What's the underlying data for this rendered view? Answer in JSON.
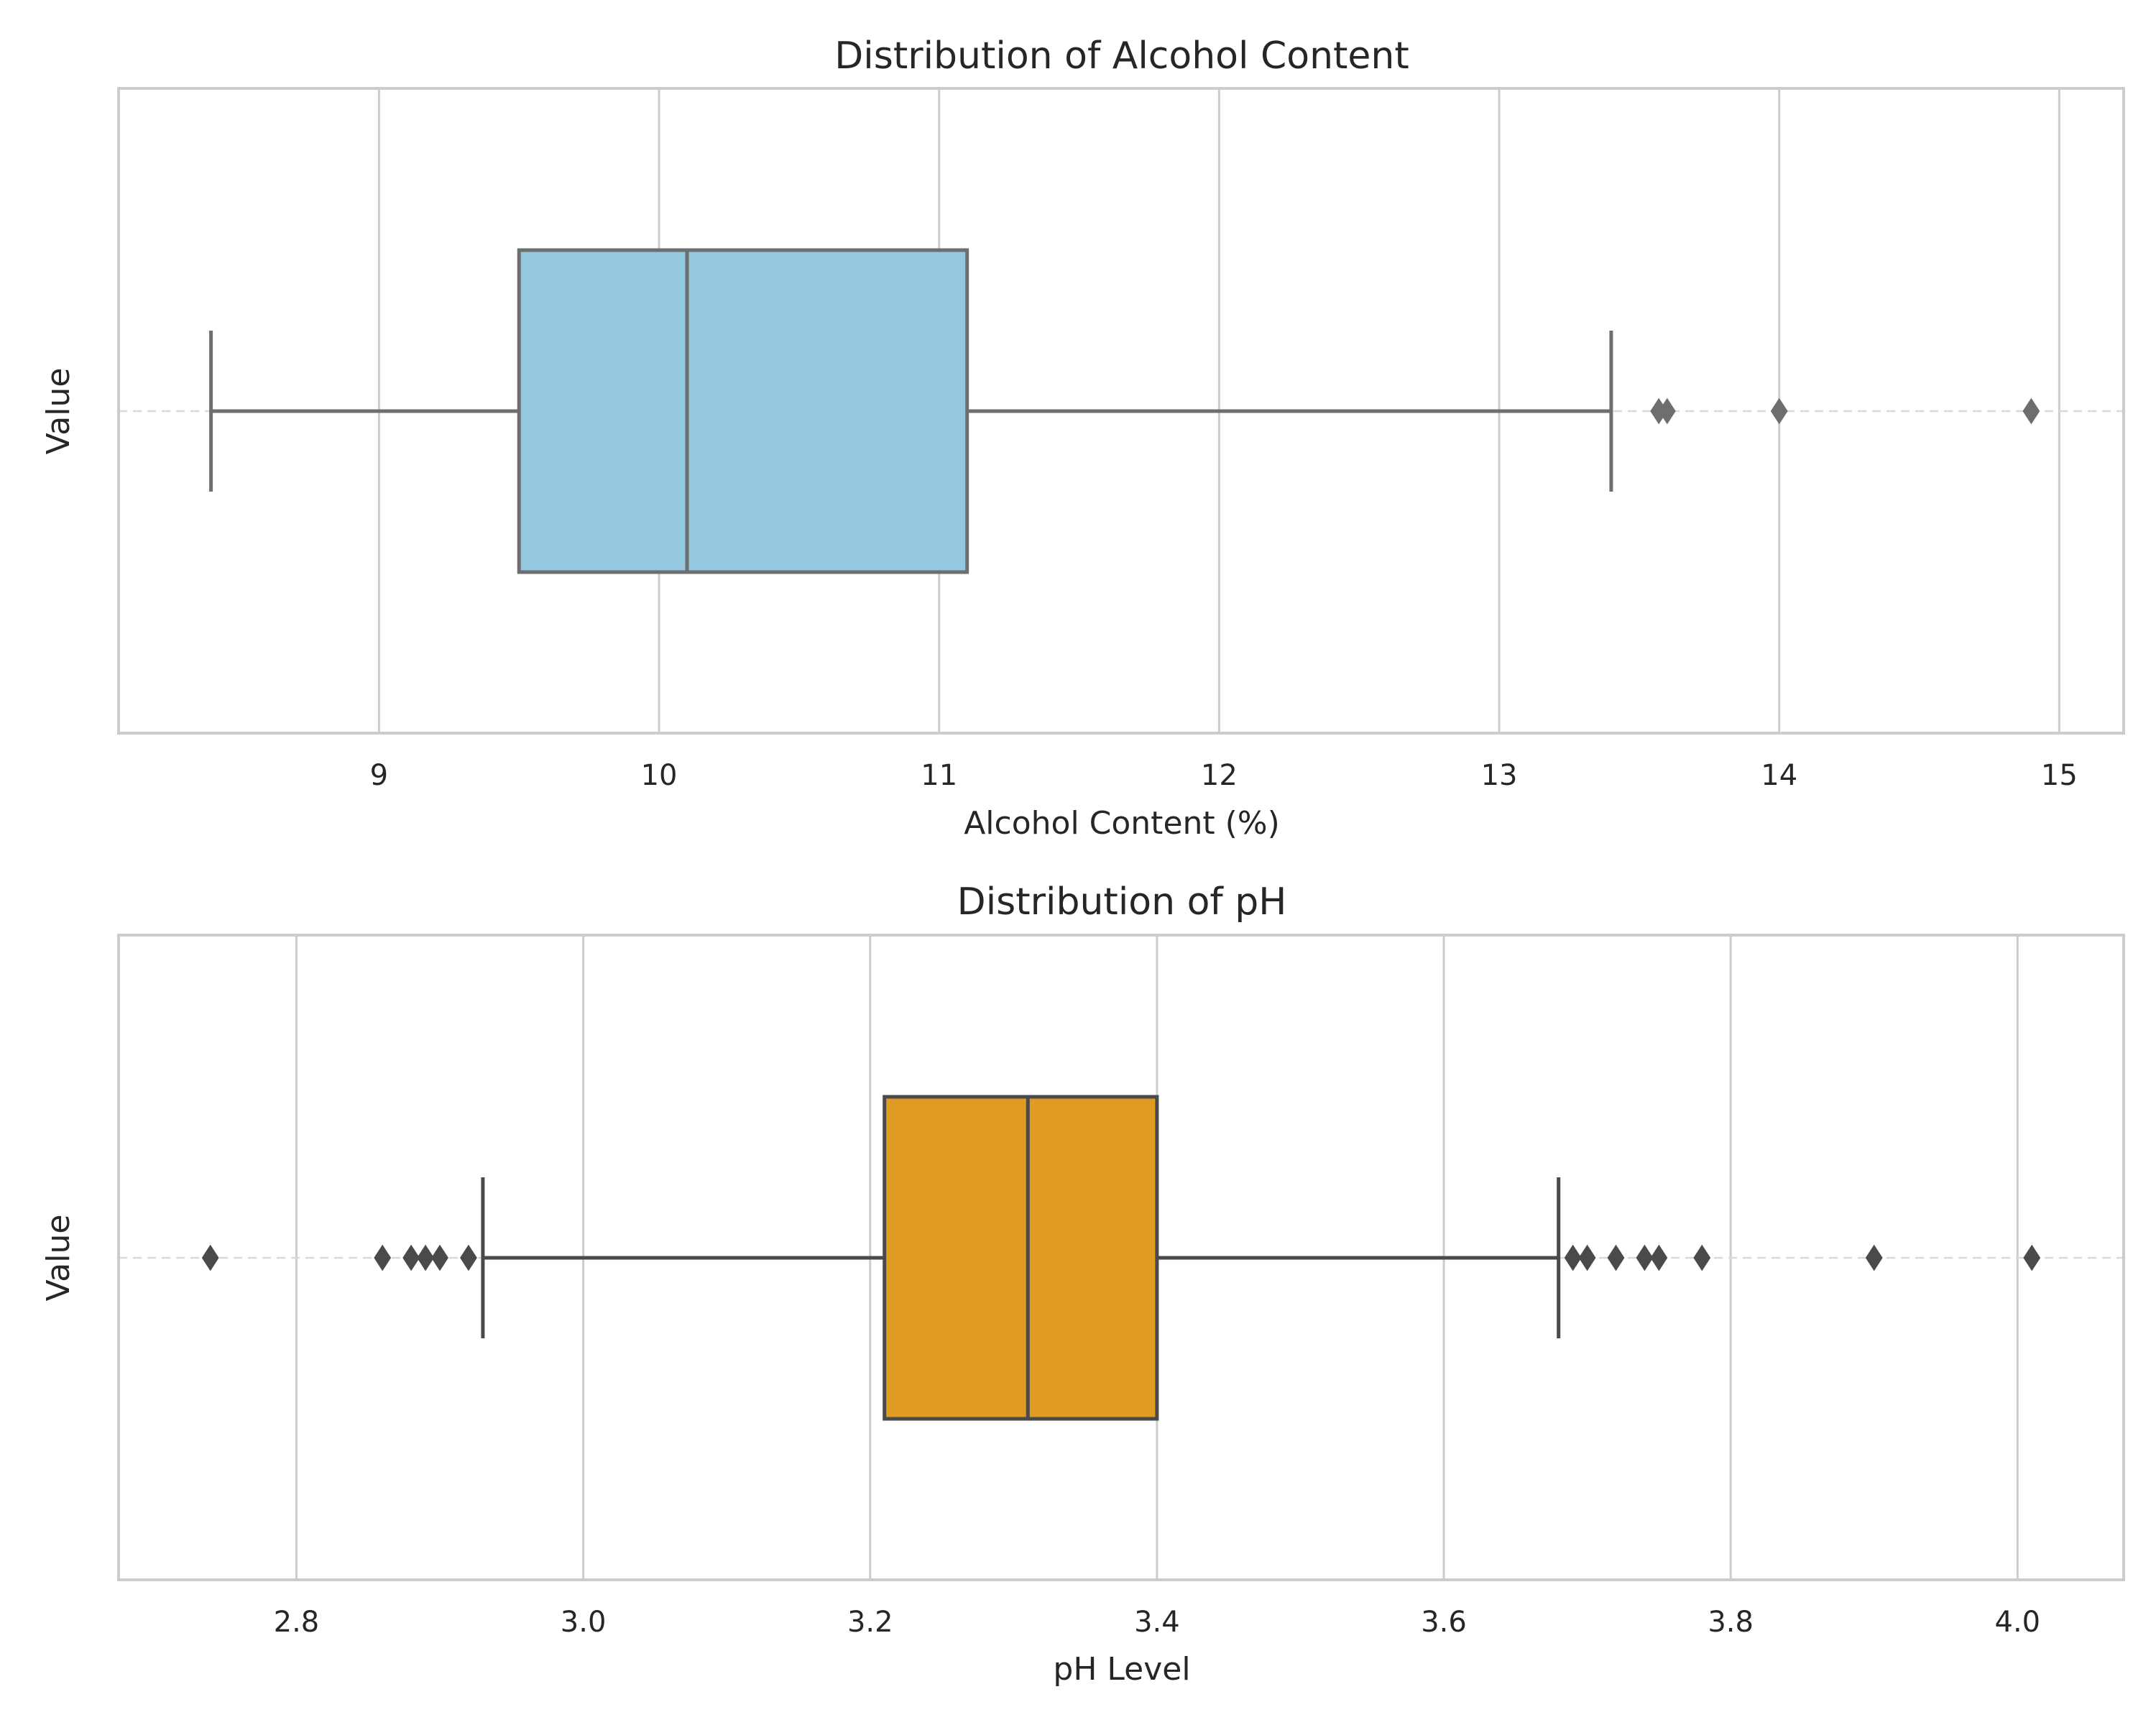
{
  "chart_data": [
    {
      "type": "box",
      "title": "Distribution of Alcohol Content",
      "xlabel": "Alcohol Content (%)",
      "ylabel": "Value",
      "xlim": [
        8.07,
        15.23
      ],
      "xticks": [
        9,
        10,
        11,
        12,
        13,
        14,
        15
      ],
      "tick_labels": [
        "9",
        "10",
        "11",
        "12",
        "13",
        "14",
        "15"
      ],
      "grid": true,
      "box": {
        "whisker_low": 8.4,
        "q1": 9.5,
        "median": 10.1,
        "q3": 11.1,
        "whisker_high": 13.4
      },
      "outliers": [
        13.57,
        13.6,
        14.0,
        14.9
      ],
      "fill_color": "#93c8de",
      "line_color": "#6e6e6e"
    },
    {
      "type": "box",
      "title": "Distribution of pH",
      "xlabel": "pH Level",
      "ylabel": "Value",
      "xlim": [
        2.676,
        4.074
      ],
      "xticks": [
        2.8,
        3.0,
        3.2,
        3.4,
        3.6,
        3.8,
        4.0
      ],
      "tick_labels": [
        "2.8",
        "3.0",
        "3.2",
        "3.4",
        "3.6",
        "3.8",
        "4.0"
      ],
      "grid": true,
      "box": {
        "whisker_low": 2.93,
        "q1": 3.21,
        "median": 3.31,
        "q3": 3.4,
        "whisker_high": 3.68
      },
      "outliers": [
        2.74,
        2.86,
        2.88,
        2.89,
        2.9,
        2.92,
        3.69,
        3.7,
        3.72,
        3.74,
        3.75,
        3.78,
        3.9,
        4.01
      ],
      "fill_color": "#e09b24",
      "line_color": "#4a4a4a"
    }
  ]
}
